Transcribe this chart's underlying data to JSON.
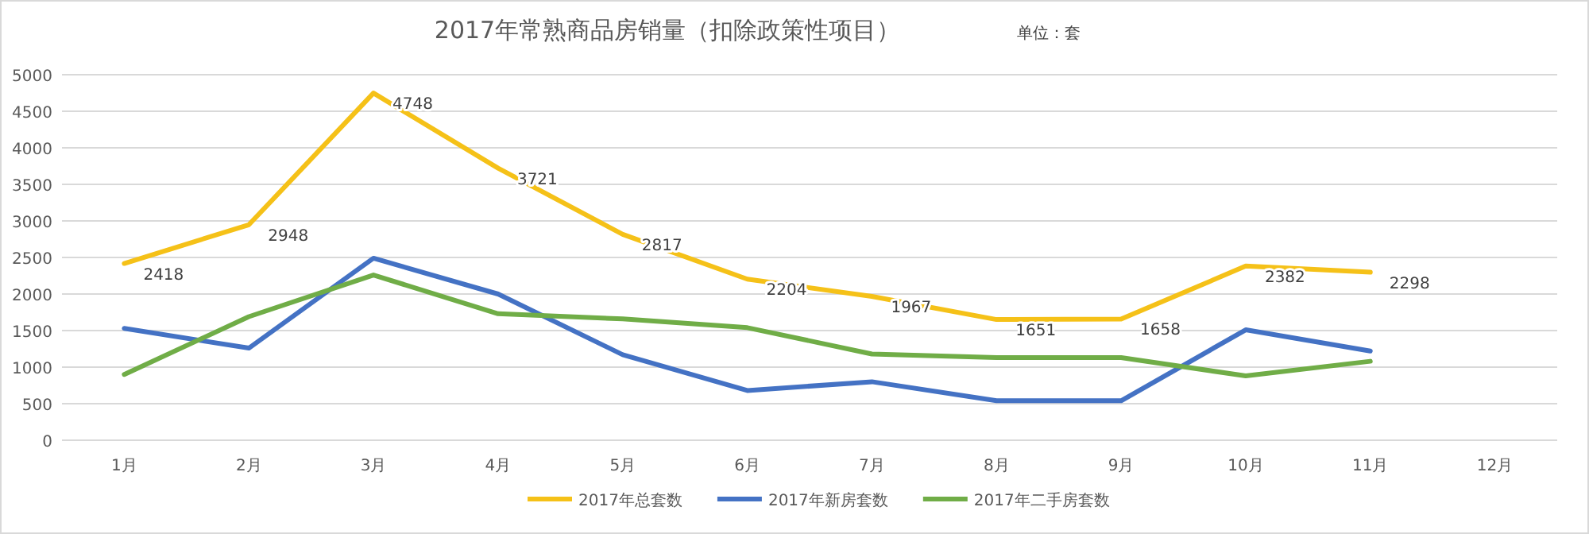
{
  "chart_data": {
    "type": "line",
    "title": "2017年常熟商品房销量（扣除政策性项目）",
    "annotations": [
      "单位：套"
    ],
    "categories": [
      "1月",
      "2月",
      "3月",
      "4月",
      "5月",
      "6月",
      "7月",
      "8月",
      "9月",
      "10月",
      "11月",
      "12月"
    ],
    "ylim": [
      0,
      5000
    ],
    "yticks": [
      0,
      500,
      1000,
      1500,
      2000,
      2500,
      3000,
      3500,
      4000,
      4500,
      5000
    ],
    "grid": "y",
    "legend": "bottom",
    "marker": "none",
    "line_style": "solid",
    "series": [
      {
        "name": "2017年总套数",
        "color": "#f5c118",
        "values": [
          2418,
          2948,
          4748,
          3721,
          2817,
          2204,
          1967,
          1651,
          1658,
          2382,
          2298,
          null
        ],
        "value_labels": [
          "2418",
          "2948",
          "4748",
          "3721",
          "2817",
          "2204",
          "1967",
          "1651",
          "1658",
          "2382",
          "2298",
          null
        ]
      },
      {
        "name": "2017年新房套数",
        "color": "#4472c4",
        "values": [
          1530,
          1260,
          2490,
          2000,
          1170,
          680,
          800,
          540,
          540,
          1510,
          1220,
          null
        ]
      },
      {
        "name": "2017年二手房套数",
        "color": "#70ad47",
        "values": [
          900,
          1690,
          2260,
          1730,
          1660,
          1540,
          1180,
          1130,
          1130,
          880,
          1080,
          null
        ]
      }
    ]
  }
}
